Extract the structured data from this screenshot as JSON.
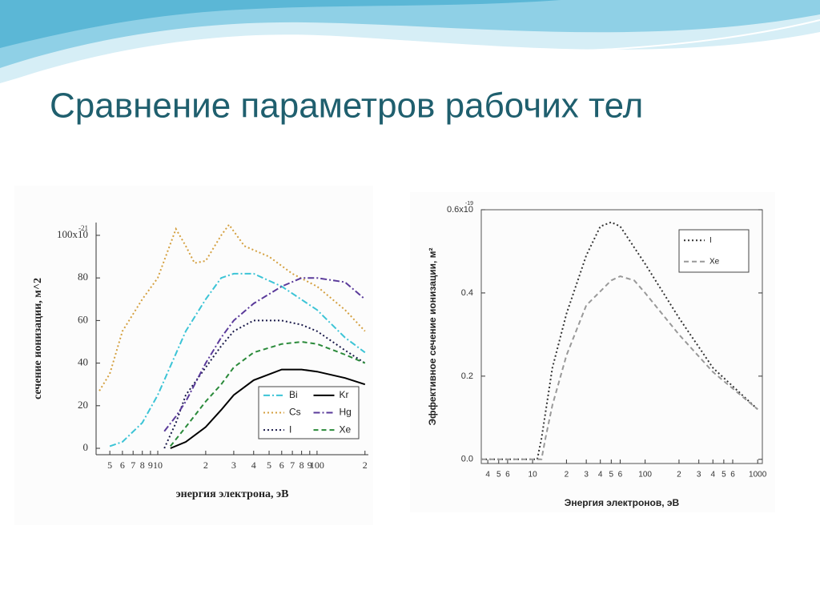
{
  "title": "Сравнение параметров рабочих тел",
  "chart_data": [
    {
      "type": "line",
      "xlabel": "энергия электрона, эВ",
      "ylabel": "сечение ионизации, м^2",
      "xscale": "log",
      "xlim": [
        4.1,
        210
      ],
      "ylim": [
        -3,
        106
      ],
      "frame": false,
      "xticks": [
        5,
        6,
        7,
        8,
        9,
        10,
        {
          "value": 20,
          "label": "2"
        },
        {
          "value": 30,
          "label": "3"
        },
        {
          "value": 40,
          "label": "4"
        },
        {
          "value": 50,
          "label": "5"
        },
        {
          "value": 60,
          "label": "6"
        },
        {
          "value": 70,
          "label": "7"
        },
        {
          "value": 80,
          "label": "8"
        },
        {
          "value": 90,
          "label": "9"
        },
        100,
        {
          "value": 200,
          "label": "2"
        }
      ],
      "yticks": [
        0,
        20,
        40,
        60,
        80,
        {
          "value": 100,
          "label": "100x10"
        }
      ],
      "y_exponent": "-21",
      "series": [
        {
          "name": "Bi",
          "color": "#3cc4d6",
          "style": "dashdot",
          "x": [
            5,
            6,
            8,
            10,
            15,
            20,
            25,
            30,
            40,
            60,
            100,
            150,
            200
          ],
          "values": [
            1,
            3,
            12,
            25,
            55,
            70,
            80,
            82,
            82,
            76,
            65,
            52,
            45
          ]
        },
        {
          "name": "Cs",
          "color": "#d4a040",
          "style": "dotted",
          "x": [
            4.3,
            5,
            6,
            8,
            10,
            13,
            15,
            17,
            20,
            25,
            28,
            35,
            50,
            70,
            100,
            150,
            200
          ],
          "values": [
            27,
            35,
            55,
            70,
            80,
            103,
            95,
            87,
            88,
            100,
            105,
            95,
            90,
            82,
            76,
            65,
            55
          ]
        },
        {
          "name": "I",
          "color": "#1a1a4a",
          "style": "dotted",
          "x": [
            11,
            13,
            15,
            20,
            25,
            30,
            40,
            60,
            80,
            100,
            150,
            200
          ],
          "values": [
            0,
            12,
            25,
            38,
            48,
            55,
            60,
            60,
            58,
            55,
            46,
            40
          ]
        },
        {
          "name": "Kr",
          "color": "#000000",
          "style": "solid",
          "x": [
            12,
            15,
            20,
            25,
            30,
            40,
            60,
            80,
            100,
            150,
            200
          ],
          "values": [
            0,
            3,
            10,
            18,
            25,
            32,
            37,
            37,
            36,
            33,
            30
          ]
        },
        {
          "name": "Hg",
          "color": "#5a3a9a",
          "style": "dashdot",
          "x": [
            11,
            13,
            15,
            20,
            25,
            30,
            40,
            60,
            80,
            100,
            150,
            200
          ],
          "values": [
            8,
            15,
            22,
            40,
            52,
            60,
            68,
            76,
            80,
            80,
            78,
            70
          ]
        },
        {
          "name": "Xe",
          "color": "#2a8a3a",
          "style": "dashed",
          "x": [
            12,
            15,
            20,
            25,
            30,
            40,
            60,
            80,
            100,
            150,
            200
          ],
          "values": [
            1,
            10,
            22,
            30,
            38,
            45,
            49,
            50,
            49,
            44,
            40
          ]
        }
      ]
    },
    {
      "type": "line",
      "xlabel": "Энергия электронов, эВ",
      "ylabel": "Эффективное сечение ионизации, м²",
      "xscale": "log",
      "xlim": [
        3.5,
        1100
      ],
      "ylim": [
        -0.01,
        0.6
      ],
      "frame": true,
      "xticks": [
        4,
        5,
        6,
        10,
        {
          "value": 20,
          "label": "2"
        },
        {
          "value": 30,
          "label": "3"
        },
        {
          "value": 40,
          "label": "4"
        },
        {
          "value": 50,
          "label": "5"
        },
        {
          "value": 60,
          "label": "6"
        },
        100,
        {
          "value": 200,
          "label": "2"
        },
        {
          "value": 300,
          "label": "3"
        },
        {
          "value": 400,
          "label": "4"
        },
        {
          "value": 500,
          "label": "5"
        },
        {
          "value": 600,
          "label": "6"
        },
        1000
      ],
      "yticks": [
        {
          "value": 0,
          "label": "0.0"
        },
        0.2,
        0.4,
        {
          "value": 0.6,
          "label": "0.6x10"
        }
      ],
      "y_exponent": "-19",
      "series": [
        {
          "name": "I",
          "color": "#333333",
          "style": "dotted",
          "x": [
            3.5,
            10,
            11,
            12,
            15,
            20,
            30,
            40,
            50,
            60,
            100,
            200,
            400,
            1000
          ],
          "values": [
            0,
            0,
            0,
            0.05,
            0.22,
            0.35,
            0.49,
            0.56,
            0.57,
            0.56,
            0.47,
            0.34,
            0.22,
            0.12
          ]
        },
        {
          "name": "Xe",
          "color": "#999999",
          "style": "dashed",
          "x": [
            3.5,
            12,
            13,
            15,
            20,
            30,
            50,
            60,
            80,
            100,
            200,
            400,
            1000
          ],
          "values": [
            0,
            0,
            0.05,
            0.13,
            0.25,
            0.37,
            0.43,
            0.44,
            0.43,
            0.4,
            0.3,
            0.21,
            0.12
          ]
        }
      ]
    }
  ]
}
